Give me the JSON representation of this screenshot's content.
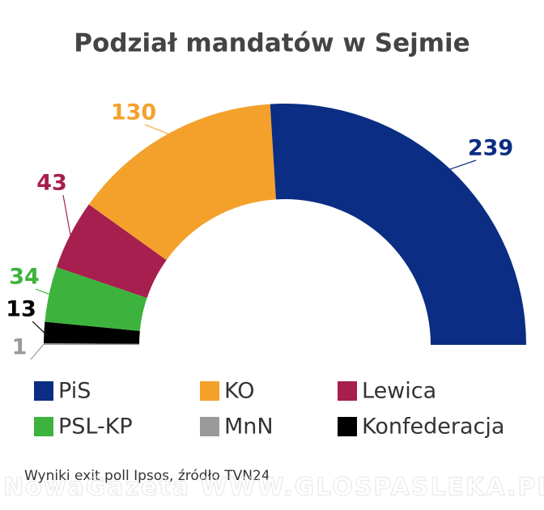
{
  "chart_data": {
    "type": "semi-donut",
    "title": "Podział mandatów w Sejmie",
    "categories": [
      "PiS",
      "KO",
      "Lewica",
      "PSL-KP",
      "MnN",
      "Konfederacja"
    ],
    "values": [
      239,
      130,
      43,
      34,
      1,
      13
    ],
    "colors": [
      "#0b2d83",
      "#f4a12c",
      "#a61f4e",
      "#3db33d",
      "#9a9a9a",
      "#000000"
    ],
    "legend": "bottom",
    "source": "Wyniki exit poll Ipsos, źródło TVN24",
    "watermark": "NowaGazeta WWW.GLOSPASLEKA.PL"
  }
}
